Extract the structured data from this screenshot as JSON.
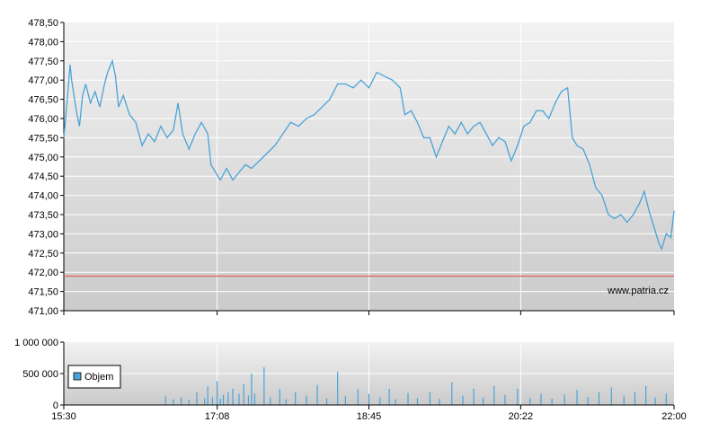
{
  "watermark": "www.patria.cz",
  "colors": {
    "price_line": "#4aa3d8",
    "reference_line": "#e06060",
    "volume_bar": "#4aa3d8",
    "grid": "#ffffff",
    "plot_top": "#f2f2f2",
    "plot_bottom": "#cbcbcb"
  },
  "chart_data": [
    {
      "type": "line",
      "xlabel": "",
      "ylabel": "",
      "x_ticks": [
        "15:30",
        "17:08",
        "18:45",
        "20:22",
        "22:00"
      ],
      "y_ticks": [
        "471,00",
        "471,50",
        "472,00",
        "472,50",
        "473,00",
        "473,50",
        "474,00",
        "474,50",
        "475,00",
        "475,50",
        "476,00",
        "476,50",
        "477,00",
        "477,50",
        "478,00",
        "478,50"
      ],
      "ylim": [
        471.0,
        478.5
      ],
      "xlim": [
        "15:30",
        "22:00"
      ],
      "grid": true,
      "reference_line": 471.9,
      "series": [
        {
          "values": [
            [
              "15:30",
              475.5
            ],
            [
              "15:32",
              476.4
            ],
            [
              "15:34",
              477.4
            ],
            [
              "15:35",
              477.0
            ],
            [
              "15:38",
              476.2
            ],
            [
              "15:40",
              475.8
            ],
            [
              "15:42",
              476.6
            ],
            [
              "15:44",
              476.9
            ],
            [
              "15:47",
              476.4
            ],
            [
              "15:50",
              476.7
            ],
            [
              "15:53",
              476.3
            ],
            [
              "15:56",
              476.9
            ],
            [
              "15:58",
              477.2
            ],
            [
              "16:01",
              477.5
            ],
            [
              "16:03",
              477.1
            ],
            [
              "16:05",
              476.3
            ],
            [
              "16:08",
              476.6
            ],
            [
              "16:12",
              476.1
            ],
            [
              "16:16",
              475.9
            ],
            [
              "16:20",
              475.3
            ],
            [
              "16:24",
              475.6
            ],
            [
              "16:28",
              475.4
            ],
            [
              "16:32",
              475.8
            ],
            [
              "16:36",
              475.5
            ],
            [
              "16:40",
              475.7
            ],
            [
              "16:43",
              476.4
            ],
            [
              "16:46",
              475.6
            ],
            [
              "16:50",
              475.2
            ],
            [
              "16:54",
              475.6
            ],
            [
              "16:58",
              475.9
            ],
            [
              "17:02",
              475.6
            ],
            [
              "17:04",
              474.8
            ],
            [
              "17:07",
              474.6
            ],
            [
              "17:10",
              474.4
            ],
            [
              "17:14",
              474.7
            ],
            [
              "17:18",
              474.4
            ],
            [
              "17:22",
              474.6
            ],
            [
              "17:26",
              474.8
            ],
            [
              "17:30",
              474.7
            ],
            [
              "17:35",
              474.9
            ],
            [
              "17:40",
              475.1
            ],
            [
              "17:45",
              475.3
            ],
            [
              "17:50",
              475.6
            ],
            [
              "17:55",
              475.9
            ],
            [
              "18:00",
              475.8
            ],
            [
              "18:05",
              476.0
            ],
            [
              "18:10",
              476.1
            ],
            [
              "18:15",
              476.3
            ],
            [
              "18:20",
              476.5
            ],
            [
              "18:25",
              476.9
            ],
            [
              "18:30",
              476.9
            ],
            [
              "18:35",
              476.8
            ],
            [
              "18:40",
              477.0
            ],
            [
              "18:45",
              476.8
            ],
            [
              "18:50",
              477.2
            ],
            [
              "18:55",
              477.1
            ],
            [
              "19:00",
              477.0
            ],
            [
              "19:05",
              476.8
            ],
            [
              "19:08",
              476.1
            ],
            [
              "19:12",
              476.2
            ],
            [
              "19:16",
              475.9
            ],
            [
              "19:20",
              475.5
            ],
            [
              "19:24",
              475.5
            ],
            [
              "19:28",
              475.0
            ],
            [
              "19:32",
              475.4
            ],
            [
              "19:36",
              475.8
            ],
            [
              "19:40",
              475.6
            ],
            [
              "19:44",
              475.9
            ],
            [
              "19:48",
              475.6
            ],
            [
              "19:52",
              475.8
            ],
            [
              "19:56",
              475.9
            ],
            [
              "20:00",
              475.6
            ],
            [
              "20:04",
              475.3
            ],
            [
              "20:08",
              475.5
            ],
            [
              "20:12",
              475.4
            ],
            [
              "20:16",
              474.9
            ],
            [
              "20:20",
              475.3
            ],
            [
              "20:24",
              475.8
            ],
            [
              "20:28",
              475.9
            ],
            [
              "20:32",
              476.2
            ],
            [
              "20:36",
              476.2
            ],
            [
              "20:40",
              476.0
            ],
            [
              "20:44",
              476.4
            ],
            [
              "20:48",
              476.7
            ],
            [
              "20:52",
              476.8
            ],
            [
              "20:55",
              475.5
            ],
            [
              "20:58",
              475.3
            ],
            [
              "21:02",
              475.2
            ],
            [
              "21:06",
              474.8
            ],
            [
              "21:10",
              474.2
            ],
            [
              "21:14",
              474.0
            ],
            [
              "21:18",
              473.5
            ],
            [
              "21:22",
              473.4
            ],
            [
              "21:26",
              473.5
            ],
            [
              "21:30",
              473.3
            ],
            [
              "21:34",
              473.5
            ],
            [
              "21:38",
              473.8
            ],
            [
              "21:41",
              474.1
            ],
            [
              "21:44",
              473.6
            ],
            [
              "21:47",
              473.2
            ],
            [
              "21:50",
              472.8
            ],
            [
              "21:52",
              472.6
            ],
            [
              "21:55",
              473.0
            ],
            [
              "21:58",
              472.9
            ],
            [
              "22:00",
              473.6
            ]
          ]
        }
      ]
    },
    {
      "type": "bar",
      "xlabel": "",
      "ylabel": "",
      "x_ticks": [
        "15:30",
        "17:08",
        "18:45",
        "20:22",
        "22:00"
      ],
      "y_ticks": [
        "0",
        "500 000",
        "1 000 000"
      ],
      "ylim": [
        0,
        1000000
      ],
      "xlim": [
        "15:30",
        "22:00"
      ],
      "grid": true,
      "legend": [
        "Objem"
      ],
      "legend_position": "bottom-left",
      "series": [
        {
          "name": "Objem",
          "values": [
            [
              "16:35",
              150000
            ],
            [
              "16:40",
              90000
            ],
            [
              "16:45",
              120000
            ],
            [
              "16:50",
              80000
            ],
            [
              "16:55",
              200000
            ],
            [
              "17:00",
              110000
            ],
            [
              "17:02",
              300000
            ],
            [
              "17:05",
              120000
            ],
            [
              "17:08",
              380000
            ],
            [
              "17:10",
              100000
            ],
            [
              "17:12",
              160000
            ],
            [
              "17:15",
              200000
            ],
            [
              "17:18",
              260000
            ],
            [
              "17:22",
              180000
            ],
            [
              "17:25",
              330000
            ],
            [
              "17:28",
              150000
            ],
            [
              "17:30",
              500000
            ],
            [
              "17:32",
              180000
            ],
            [
              "17:38",
              600000
            ],
            [
              "17:42",
              120000
            ],
            [
              "17:48",
              250000
            ],
            [
              "17:52",
              90000
            ],
            [
              "17:58",
              200000
            ],
            [
              "18:05",
              150000
            ],
            [
              "18:12",
              320000
            ],
            [
              "18:18",
              110000
            ],
            [
              "18:25",
              530000
            ],
            [
              "18:30",
              140000
            ],
            [
              "18:38",
              250000
            ],
            [
              "18:45",
              180000
            ],
            [
              "18:52",
              120000
            ],
            [
              "18:58",
              260000
            ],
            [
              "19:02",
              90000
            ],
            [
              "19:10",
              190000
            ],
            [
              "19:16",
              110000
            ],
            [
              "19:24",
              200000
            ],
            [
              "19:30",
              100000
            ],
            [
              "19:38",
              360000
            ],
            [
              "19:45",
              150000
            ],
            [
              "19:52",
              260000
            ],
            [
              "19:58",
              120000
            ],
            [
              "20:05",
              300000
            ],
            [
              "20:12",
              160000
            ],
            [
              "20:20",
              260000
            ],
            [
              "20:28",
              110000
            ],
            [
              "20:35",
              180000
            ],
            [
              "20:42",
              100000
            ],
            [
              "20:50",
              170000
            ],
            [
              "20:58",
              240000
            ],
            [
              "21:05",
              130000
            ],
            [
              "21:12",
              200000
            ],
            [
              "21:20",
              280000
            ],
            [
              "21:28",
              150000
            ],
            [
              "21:35",
              210000
            ],
            [
              "21:42",
              300000
            ],
            [
              "21:48",
              120000
            ],
            [
              "21:55",
              180000
            ]
          ]
        }
      ]
    }
  ]
}
